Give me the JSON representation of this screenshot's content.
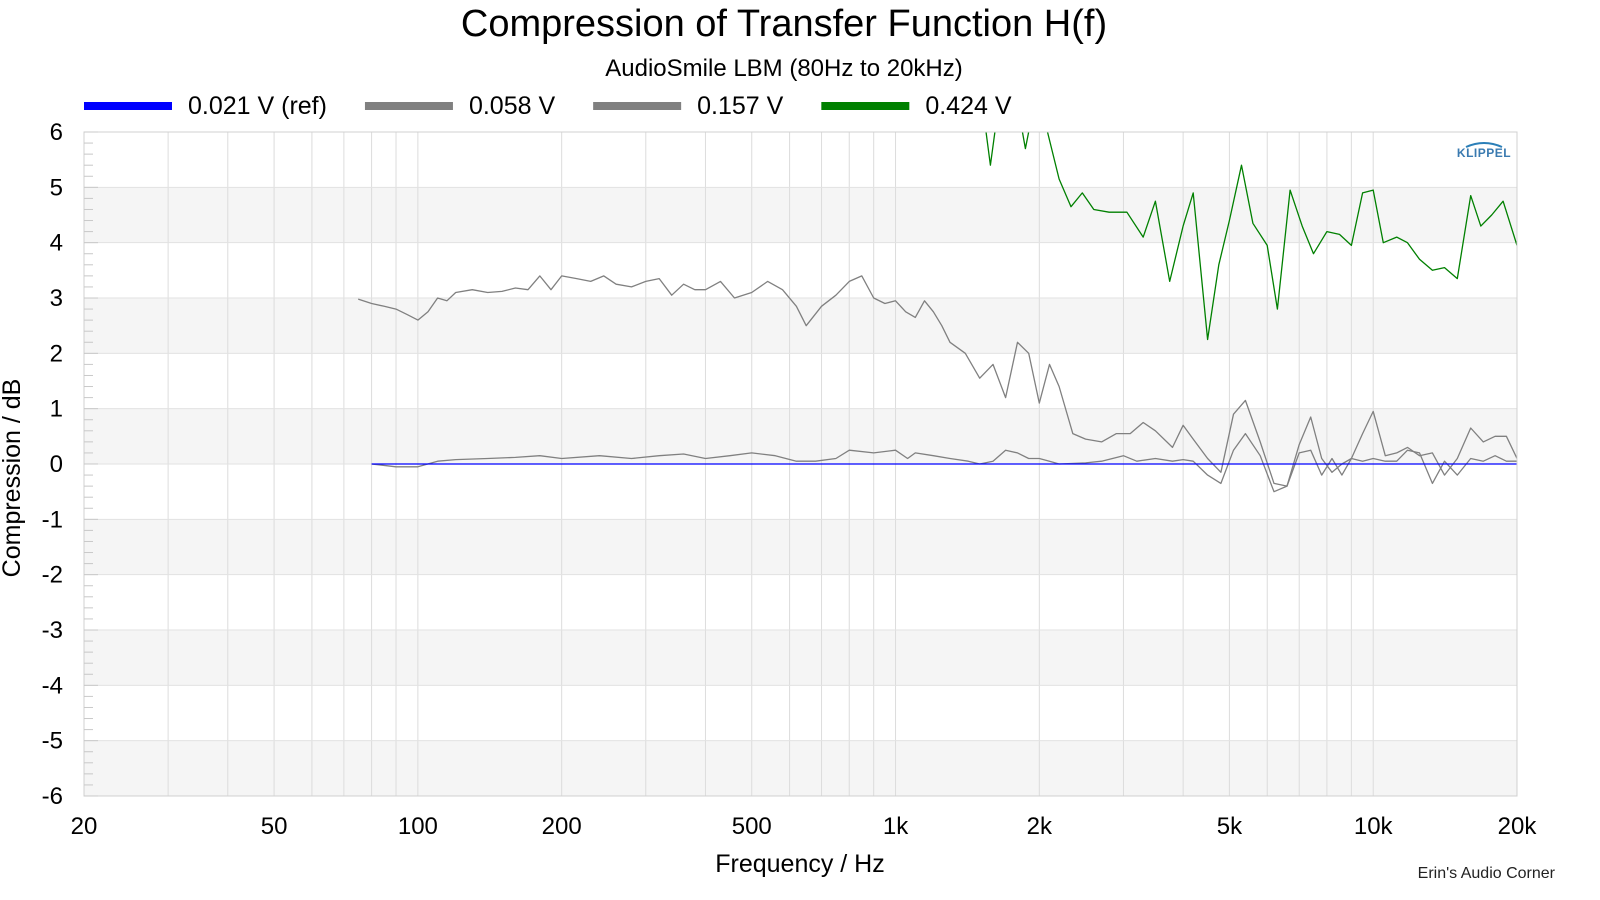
{
  "chart_data": {
    "type": "line",
    "title": "Compression of Transfer Function H(f)",
    "subtitle": "AudioSmile LBM (80Hz to 20kHz)",
    "xlabel": "Frequency / Hz",
    "ylabel": "Compression / dB",
    "xscale": "log",
    "xlim": [
      20,
      20000
    ],
    "ylim": [
      -6,
      6
    ],
    "x_ticks": [
      {
        "value": 20,
        "label": "20"
      },
      {
        "value": 50,
        "label": "50"
      },
      {
        "value": 100,
        "label": "100"
      },
      {
        "value": 200,
        "label": "200"
      },
      {
        "value": 500,
        "label": "500"
      },
      {
        "value": 1000,
        "label": "1k"
      },
      {
        "value": 2000,
        "label": "2k"
      },
      {
        "value": 5000,
        "label": "5k"
      },
      {
        "value": 10000,
        "label": "10k"
      },
      {
        "value": 20000,
        "label": "20k"
      }
    ],
    "y_ticks": [
      6,
      5,
      4,
      3,
      2,
      1,
      0,
      -1,
      -2,
      -3,
      -4,
      -5,
      -6
    ],
    "grid": true,
    "legend_position": "top",
    "series": [
      {
        "name": "0.021 V (ref)",
        "color": "#0000ff",
        "x": [
          80,
          20000
        ],
        "y": [
          0,
          0
        ]
      },
      {
        "name": "0.058 V",
        "color": "#808080",
        "x": [
          80,
          90,
          100,
          110,
          120,
          140,
          160,
          180,
          200,
          240,
          280,
          320,
          360,
          400,
          450,
          500,
          560,
          620,
          680,
          750,
          800,
          900,
          1000,
          1060,
          1100,
          1200,
          1300,
          1420,
          1500,
          1600,
          1700,
          1800,
          1900,
          2000,
          2100,
          2200,
          2500,
          2700,
          3000,
          3200,
          3500,
          3800,
          4000,
          4200,
          4500,
          4800,
          5100,
          5400,
          5800,
          6200,
          6600,
          7000,
          7400,
          7800,
          8200,
          8600,
          9000,
          9500,
          10000,
          10600,
          11200,
          11800,
          12500,
          13300,
          14100,
          15000,
          16000,
          17000,
          18000,
          19000,
          20000
        ],
        "y": [
          0.0,
          -0.05,
          -0.05,
          0.05,
          0.08,
          0.1,
          0.12,
          0.15,
          0.1,
          0.15,
          0.1,
          0.15,
          0.18,
          0.1,
          0.15,
          0.2,
          0.15,
          0.05,
          0.05,
          0.1,
          0.25,
          0.2,
          0.25,
          0.1,
          0.2,
          0.15,
          0.1,
          0.05,
          0.0,
          0.05,
          0.25,
          0.2,
          0.1,
          0.1,
          0.05,
          0.0,
          0.02,
          0.05,
          0.15,
          0.05,
          0.1,
          0.05,
          0.08,
          0.05,
          -0.2,
          -0.35,
          0.25,
          0.55,
          0.15,
          -0.5,
          -0.4,
          0.2,
          0.25,
          -0.2,
          0.1,
          -0.2,
          0.1,
          0.05,
          0.1,
          0.05,
          0.05,
          0.25,
          0.2,
          -0.35,
          0.05,
          -0.2,
          0.1,
          0.05,
          0.15,
          0.05,
          0.05
        ]
      },
      {
        "name": "0.157 V",
        "color": "#808080",
        "x": [
          75,
          80,
          85,
          90,
          95,
          100,
          105,
          110,
          115,
          120,
          130,
          140,
          150,
          160,
          170,
          180,
          190,
          200,
          215,
          230,
          245,
          260,
          280,
          300,
          320,
          340,
          360,
          380,
          400,
          430,
          460,
          500,
          540,
          580,
          620,
          650,
          700,
          750,
          800,
          850,
          900,
          950,
          1000,
          1050,
          1100,
          1150,
          1200,
          1250,
          1300,
          1400,
          1500,
          1600,
          1700,
          1800,
          1900,
          2000,
          2100,
          2200,
          2350,
          2500,
          2700,
          2900,
          3100,
          3300,
          3500,
          3800,
          4000,
          4200,
          4500,
          4800,
          5100,
          5400,
          5800,
          6200,
          6600,
          7000,
          7400,
          7800,
          8200,
          8600,
          9000,
          9500,
          10000,
          10600,
          11200,
          11800,
          12500,
          13300,
          14100,
          15000,
          16000,
          17000,
          18000,
          19000,
          20000
        ],
        "y": [
          2.98,
          2.9,
          2.85,
          2.8,
          2.7,
          2.6,
          2.75,
          3.0,
          2.95,
          3.1,
          3.15,
          3.1,
          3.12,
          3.18,
          3.15,
          3.4,
          3.15,
          3.4,
          3.35,
          3.3,
          3.4,
          3.25,
          3.2,
          3.3,
          3.35,
          3.05,
          3.25,
          3.15,
          3.15,
          3.3,
          3.0,
          3.1,
          3.3,
          3.15,
          2.85,
          2.5,
          2.85,
          3.05,
          3.3,
          3.4,
          3.0,
          2.9,
          2.95,
          2.75,
          2.65,
          2.95,
          2.75,
          2.5,
          2.2,
          2.0,
          1.55,
          1.8,
          1.2,
          2.2,
          2.0,
          1.1,
          1.8,
          1.4,
          0.55,
          0.45,
          0.4,
          0.55,
          0.55,
          0.75,
          0.6,
          0.3,
          0.7,
          0.45,
          0.1,
          -0.15,
          0.9,
          1.15,
          0.4,
          -0.35,
          -0.4,
          0.35,
          0.85,
          0.1,
          -0.15,
          0.0,
          0.1,
          0.55,
          0.95,
          0.15,
          0.2,
          0.3,
          0.15,
          0.2,
          -0.2,
          0.1,
          0.65,
          0.4,
          0.5,
          0.5,
          0.1
        ]
      },
      {
        "name": "0.424 V",
        "color": "#008000",
        "x": [
          1520,
          1580,
          1650,
          1720,
          1800,
          1870,
          1950,
          2000,
          2080,
          2200,
          2330,
          2460,
          2600,
          2800,
          3050,
          3300,
          3500,
          3750,
          4000,
          4200,
          4500,
          4750,
          5000,
          5300,
          5600,
          6000,
          6300,
          6700,
          7100,
          7500,
          8000,
          8500,
          9000,
          9500,
          10000,
          10500,
          11200,
          11800,
          12500,
          13300,
          14100,
          15000,
          16000,
          16800,
          17700,
          18700,
          20000
        ],
        "y": [
          6.5,
          5.4,
          6.6,
          6.8,
          6.5,
          5.7,
          6.5,
          6.6,
          6.0,
          5.15,
          4.65,
          4.9,
          4.6,
          4.55,
          4.55,
          4.1,
          4.75,
          3.3,
          4.3,
          4.9,
          2.25,
          3.6,
          4.4,
          5.4,
          4.35,
          3.95,
          2.8,
          4.95,
          4.3,
          3.8,
          4.2,
          4.15,
          3.95,
          4.9,
          4.95,
          4.0,
          4.1,
          4.0,
          3.7,
          3.5,
          3.55,
          3.35,
          4.85,
          4.3,
          4.5,
          4.75,
          3.95
        ]
      }
    ]
  },
  "watermark": "KLIPPEL",
  "credit": "Erin's Audio Corner"
}
